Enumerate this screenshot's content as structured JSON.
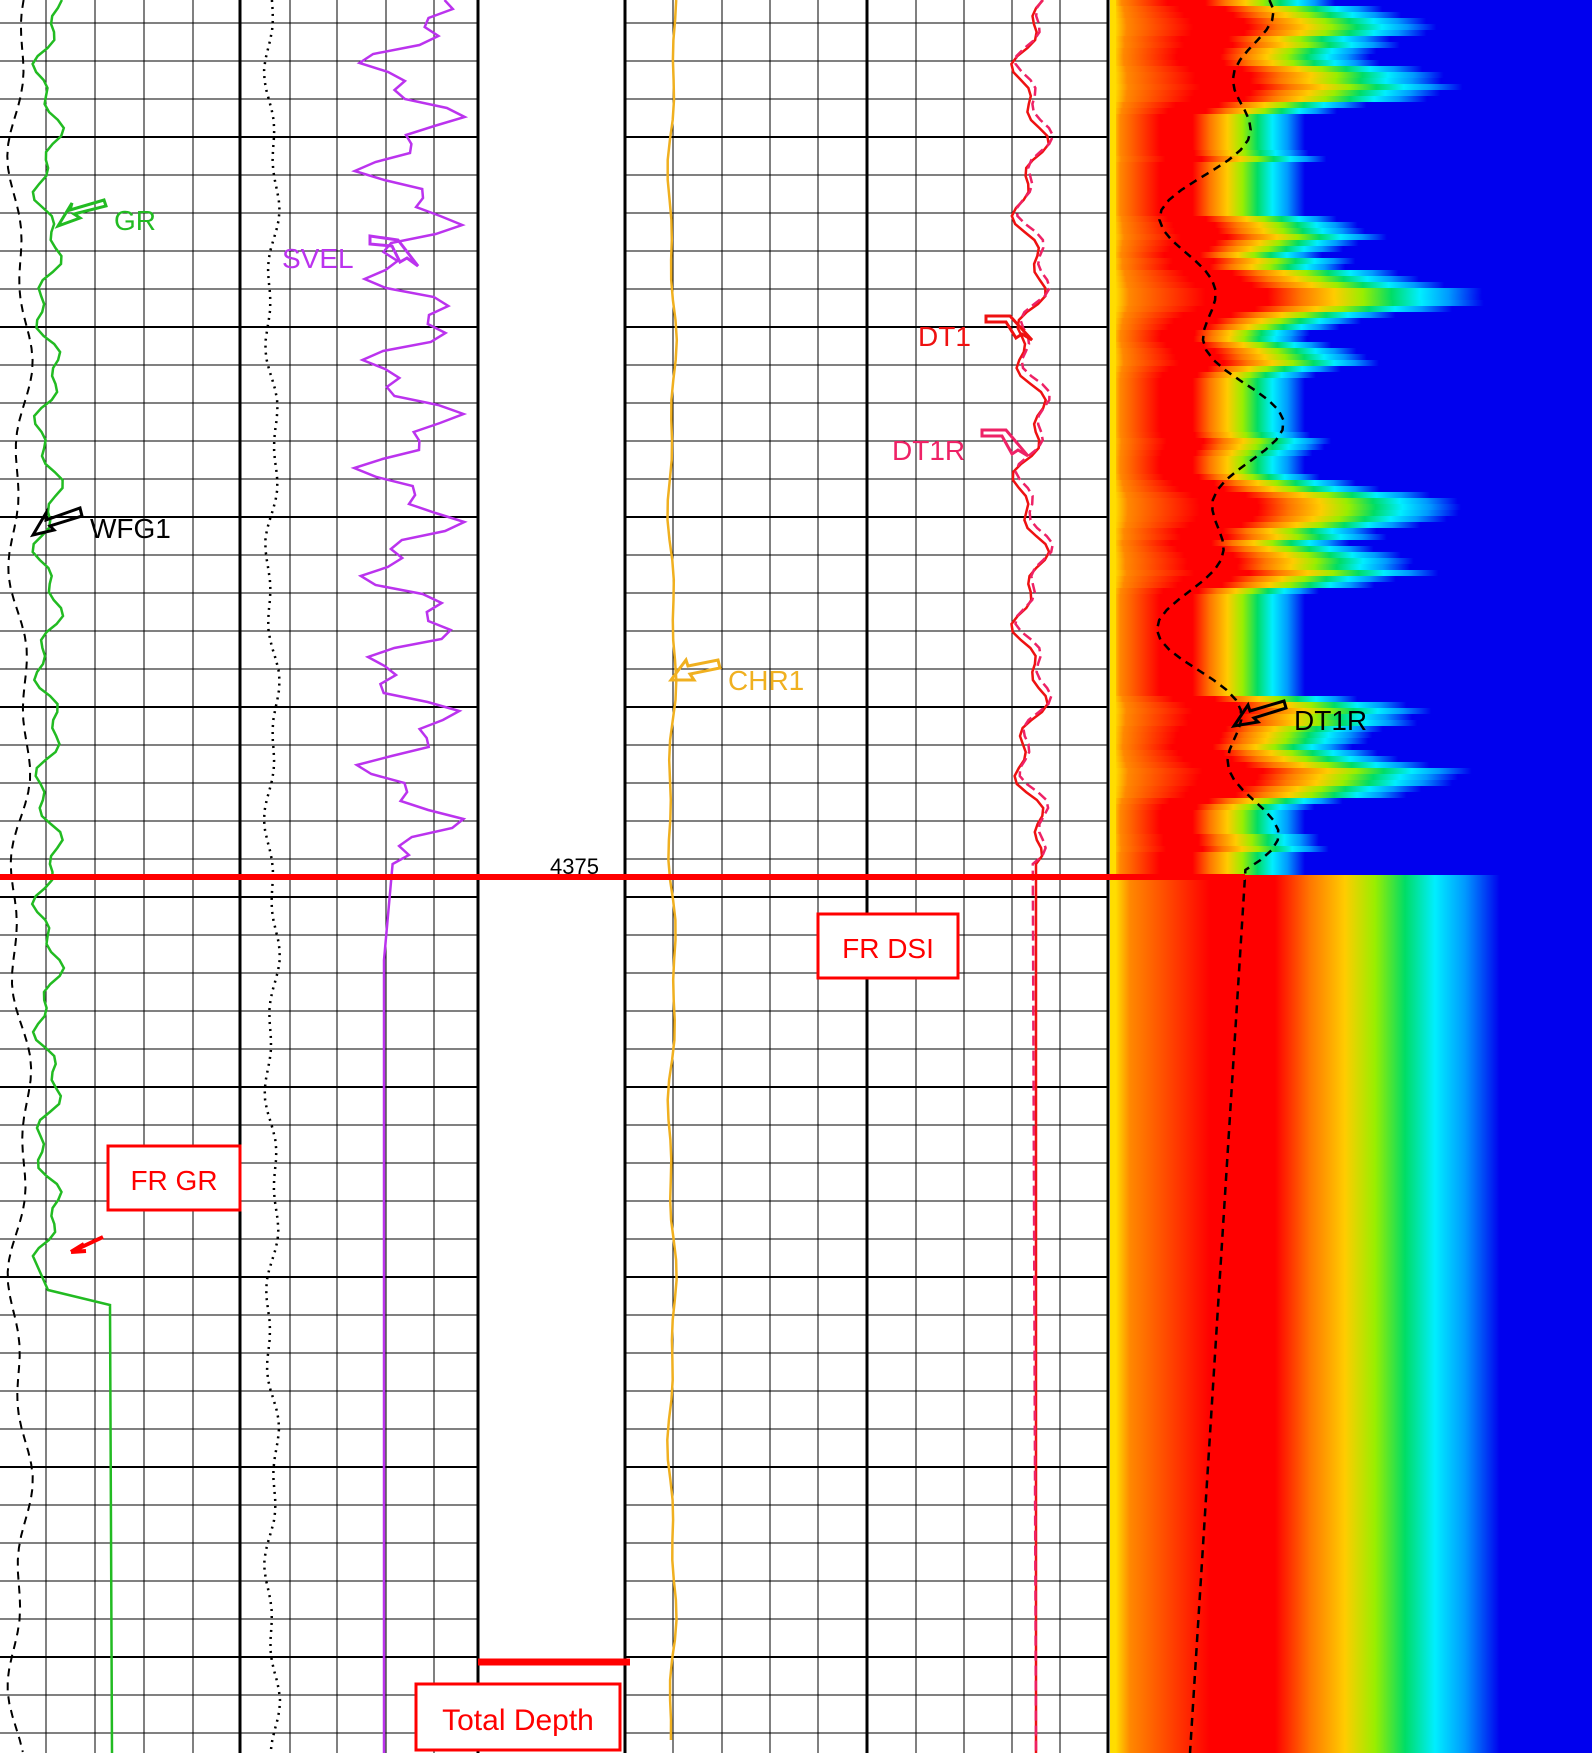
{
  "chart_data": {
    "type": "well-log",
    "tracks": [
      {
        "name": "gamma-ray-track",
        "curves": [
          {
            "name": "GR",
            "color": "#22bb22",
            "style": "solid"
          },
          {
            "name": "WFG1",
            "color": "#000000",
            "style": "dashed"
          }
        ],
        "flags": [
          {
            "label": "FR GR",
            "color": "#ff0000"
          }
        ]
      },
      {
        "name": "sonic-velocity-track",
        "curves": [
          {
            "name": "SVEL",
            "color": "#bb33ee",
            "style": "solid"
          },
          {
            "name": "",
            "color": "#000000",
            "style": "dotted"
          }
        ]
      },
      {
        "name": "depth-track",
        "depth_labels": [
          "4375"
        ],
        "flags": [
          {
            "label": "Total Depth",
            "color": "#ff0000"
          }
        ]
      },
      {
        "name": "slowness-track",
        "curves": [
          {
            "name": "CHR1",
            "color": "#f0b020",
            "style": "solid"
          },
          {
            "name": "DT1",
            "color": "#ee1111",
            "style": "solid"
          },
          {
            "name": "DT1R",
            "color": "#ee2266",
            "style": "dashed"
          }
        ],
        "flags": [
          {
            "label": "FR DSI",
            "color": "#ff0000"
          }
        ]
      },
      {
        "name": "waveform-image-track",
        "type": "heatmap",
        "colormap": [
          "#ffff00",
          "#ff8800",
          "#ff4400",
          "#ff0000",
          "#ff7700",
          "#ffcc00",
          "#99ee00",
          "#00dd66",
          "#00eeff",
          "#0099ff",
          "#0000ee"
        ],
        "curves": [
          {
            "name": "DT1R",
            "color": "#000000",
            "style": "dashed"
          }
        ]
      }
    ],
    "labels": {
      "gr": "GR",
      "wfg1": "WFG1",
      "svel": "SVEL",
      "chr1": "CHR1",
      "dt1": "DT1",
      "dt1r_slowness": "DT1R",
      "dt1r_image": "DT1R",
      "depth": "4375",
      "fr_gr": "FR GR",
      "fr_dsi": "FR DSI",
      "total_depth": "Total Depth"
    }
  }
}
